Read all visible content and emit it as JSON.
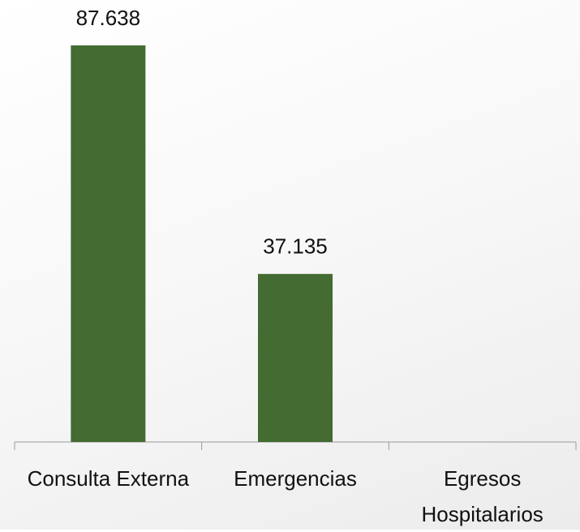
{
  "chart_data": {
    "type": "bar",
    "categories": [
      "Consulta Externa",
      "Emergencias",
      "Egresos Hospitalarios"
    ],
    "values": [
      87638,
      37135,
      null
    ],
    "value_labels": [
      "87.638",
      "37.135",
      null
    ],
    "color": "#436b32"
  }
}
